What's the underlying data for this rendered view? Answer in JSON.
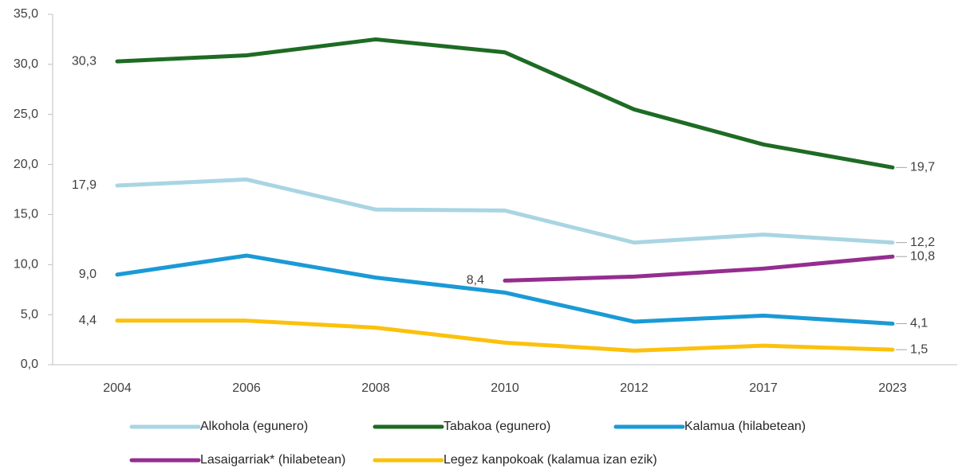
{
  "chart_data": {
    "type": "line",
    "categories": [
      "2004",
      "2006",
      "2008",
      "2010",
      "2012",
      "2017",
      "2023"
    ],
    "ylim": [
      0,
      35
    ],
    "yticks": [
      {
        "value": 0,
        "label": "0,0"
      },
      {
        "value": 5,
        "label": "5,0"
      },
      {
        "value": 10,
        "label": "10,0"
      },
      {
        "value": 15,
        "label": "15,0"
      },
      {
        "value": 20,
        "label": "20,0"
      },
      {
        "value": 25,
        "label": "25,0"
      },
      {
        "value": 30,
        "label": "30,0"
      },
      {
        "value": 35,
        "label": "35,0"
      }
    ],
    "grid": false,
    "legend": "bottom",
    "series": [
      {
        "name": "Alkohola (egunero)",
        "color": "#a9d5e3",
        "values": [
          17.9,
          18.5,
          15.5,
          15.4,
          12.2,
          13.0,
          12.2
        ],
        "value_labels": [
          "17,9",
          null,
          null,
          null,
          null,
          null,
          "12,2"
        ]
      },
      {
        "name": "Tabakoa (egunero)",
        "color": "#1e6b24",
        "values": [
          30.3,
          30.9,
          32.5,
          31.2,
          25.5,
          22.0,
          19.7
        ],
        "value_labels": [
          "30,3",
          null,
          null,
          null,
          null,
          null,
          "19,7"
        ]
      },
      {
        "name": "Kalamua (hilabetean)",
        "color": "#1a9ad6",
        "values": [
          9.0,
          10.9,
          8.7,
          7.2,
          4.3,
          4.9,
          4.1
        ],
        "value_labels": [
          "9,0",
          null,
          null,
          null,
          null,
          null,
          "4,1"
        ]
      },
      {
        "name": "Lasaigarriak* (hilabetean)",
        "color": "#952d8f",
        "values": [
          null,
          null,
          null,
          8.4,
          8.8,
          9.6,
          10.8
        ],
        "value_labels": [
          null,
          null,
          null,
          "8,4",
          null,
          null,
          "10,8"
        ]
      },
      {
        "name": "Legez kanpokoak (kalamua izan ezik)",
        "color": "#fbc10c",
        "values": [
          4.4,
          4.4,
          3.7,
          2.2,
          1.4,
          1.9,
          1.5
        ],
        "value_labels": [
          "4,4",
          null,
          null,
          null,
          null,
          null,
          "1,5"
        ]
      }
    ]
  }
}
